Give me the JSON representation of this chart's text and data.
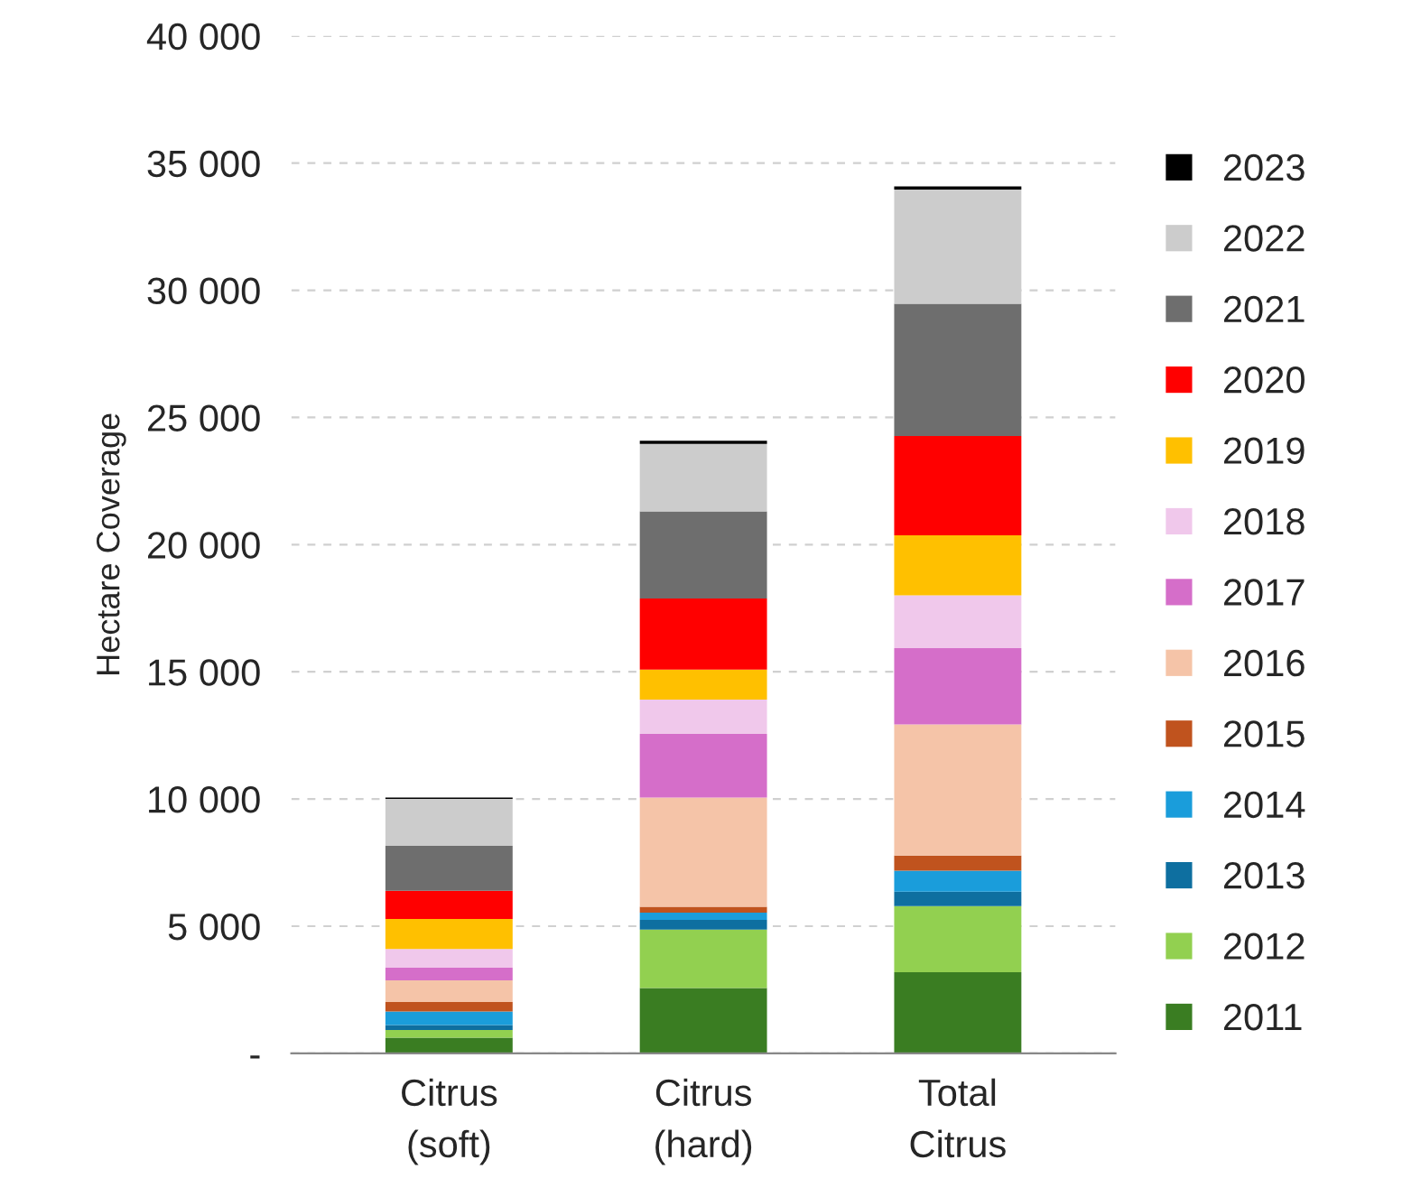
{
  "chart_data": {
    "type": "bar",
    "stacked": true,
    "ylabel": "Hectare Coverage",
    "categories": [
      "Citrus\n(soft)",
      "Citrus\n(hard)",
      "Total\nCitrus"
    ],
    "series": [
      {
        "name": "2011",
        "color": "#3a7d22",
        "values": [
          620,
          2570,
          3190
        ]
      },
      {
        "name": "2012",
        "color": "#92d050",
        "values": [
          300,
          2300,
          2600
        ]
      },
      {
        "name": "2013",
        "color": "#0e6fa0",
        "values": [
          190,
          380,
          570
        ]
      },
      {
        "name": "2014",
        "color": "#1a9ddb",
        "values": [
          540,
          280,
          820
        ]
      },
      {
        "name": "2015",
        "color": "#c0531e",
        "values": [
          370,
          230,
          600
        ]
      },
      {
        "name": "2016",
        "color": "#f5c4a8",
        "values": [
          850,
          4300,
          5150
        ]
      },
      {
        "name": "2017",
        "color": "#d56ec9",
        "values": [
          500,
          2500,
          3000
        ]
      },
      {
        "name": "2018",
        "color": "#f0c8eb",
        "values": [
          730,
          1350,
          2080
        ]
      },
      {
        "name": "2019",
        "color": "#ffc000",
        "values": [
          1180,
          1180,
          2360
        ]
      },
      {
        "name": "2020",
        "color": "#ff0000",
        "values": [
          1110,
          2790,
          3900
        ]
      },
      {
        "name": "2021",
        "color": "#6e6e6e",
        "values": [
          1770,
          3430,
          5200
        ]
      },
      {
        "name": "2022",
        "color": "#cccccc",
        "values": [
          1840,
          2650,
          4490
        ]
      },
      {
        "name": "2023",
        "color": "#000000",
        "values": [
          60,
          120,
          120
        ]
      }
    ],
    "ylim": [
      0,
      40000
    ],
    "yticks": [
      {
        "value": 0,
        "label": "-"
      },
      {
        "value": 5000,
        "label": "5 000"
      },
      {
        "value": 10000,
        "label": "10 000"
      },
      {
        "value": 15000,
        "label": "15 000"
      },
      {
        "value": 20000,
        "label": "20 000"
      },
      {
        "value": 25000,
        "label": "25 000"
      },
      {
        "value": 30000,
        "label": "30 000"
      },
      {
        "value": 35000,
        "label": "35 000"
      },
      {
        "value": 40000,
        "label": "40 000"
      }
    ],
    "grid": "y",
    "legend": "right"
  }
}
